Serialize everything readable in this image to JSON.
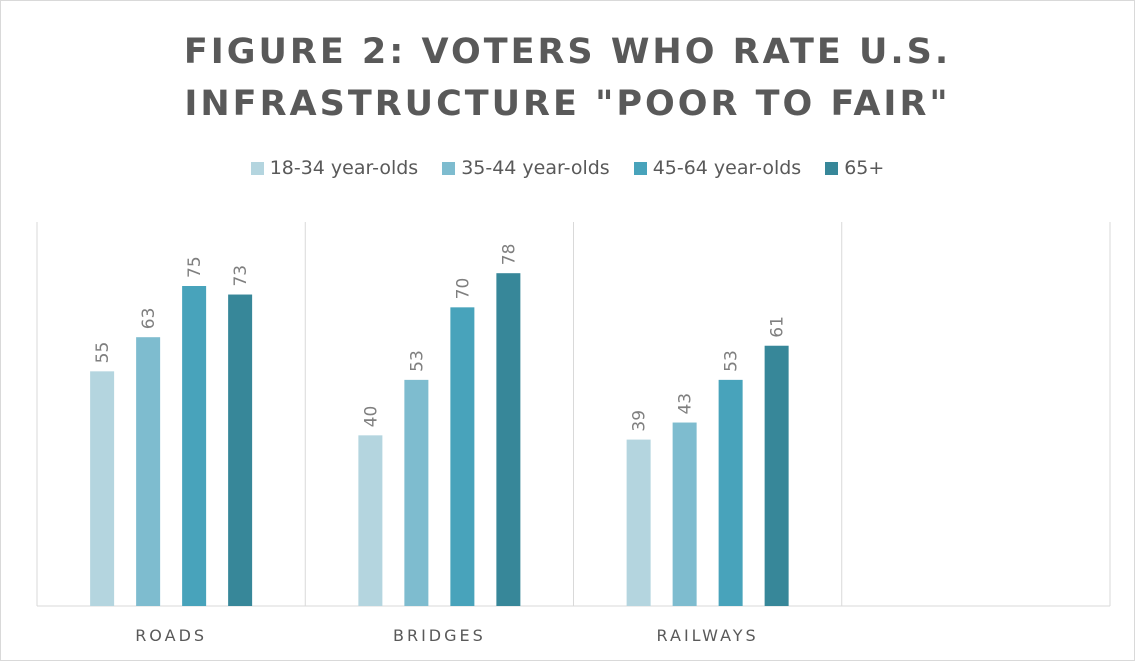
{
  "chart_data": {
    "type": "bar",
    "title": "FIGURE 2: VOTERS WHO RATE U.S. INFRASTRUCTURE \"POOR TO FAIR\"",
    "categories": [
      "ROADS",
      "BRIDGES",
      "RAILWAYS",
      null
    ],
    "series": [
      {
        "name": "18-34 year-olds",
        "color": "#b4d5df",
        "values": [
          55,
          40,
          39,
          null
        ]
      },
      {
        "name": "35-44 year-olds",
        "color": "#7ebccf",
        "values": [
          63,
          53,
          43,
          null
        ]
      },
      {
        "name": "45-64 year-olds",
        "color": "#48a3bb",
        "values": [
          75,
          70,
          53,
          null
        ]
      },
      {
        "name": "65+",
        "color": "#378799",
        "values": [
          73,
          78,
          61,
          null
        ]
      }
    ],
    "ylim": [
      0,
      90
    ]
  }
}
